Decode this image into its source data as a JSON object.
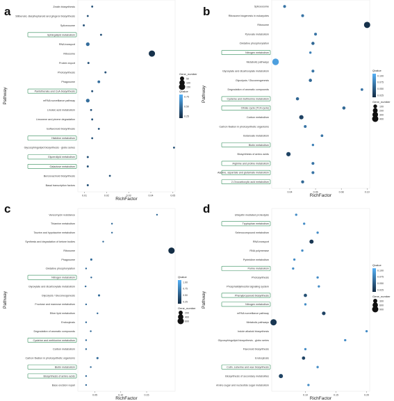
{
  "chart_data": [
    {
      "type": "scatter",
      "panel_label": "a",
      "xlabel": "RichFactor",
      "ylabel": "Pathway",
      "xlim": [
        0.007,
        0.051
      ],
      "xticks": [
        0.01,
        0.02,
        0.03,
        0.04,
        0.05
      ],
      "xtick_labels": [
        "0.01",
        "0.02",
        "0.03",
        "0.04",
        "0.05"
      ],
      "categories": [
        "Zeatin biosynthesis",
        "Stilbenoid, diarylheptanoid and gingerol biosynthesis",
        "Spliceosome",
        "Sphingolipid metabolism",
        "RNA transport",
        "Ribosome",
        "Protein export",
        "Photosynthesis",
        "Phagosome",
        "Pantothenate and CoA biosynthesis",
        "mRNA surveillance pathway",
        "Linoleic acid metabolism",
        "Limonene and pinene degradation",
        "Isoflavonoid biosynthesis",
        "Histidine metabolism",
        "Glycosphingolipid biosynthesis - globo series",
        "Glycerolipid metabolism",
        "Galactose metabolism",
        "Benzoxazinoid biosynthesis",
        "Basal transcription factors"
      ],
      "highlighted": [
        "Sphingolipid metabolism",
        "Pantothenate and CoA biosynthesis",
        "Histidine metabolism",
        "Glycerolipid metabolism",
        "Galactose metabolism"
      ],
      "points": [
        {
          "x": 0.0135,
          "q": 0.3,
          "n": 3
        },
        {
          "x": 0.0115,
          "q": 0.3,
          "n": 3
        },
        {
          "x": 0.0097,
          "q": 0.3,
          "n": 4
        },
        {
          "x": 0.0175,
          "q": 0.3,
          "n": 4
        },
        {
          "x": 0.0115,
          "q": 0.5,
          "n": 35
        },
        {
          "x": 0.0405,
          "q": 0.05,
          "n": 150
        },
        {
          "x": 0.0118,
          "q": 0.3,
          "n": 4
        },
        {
          "x": 0.0195,
          "q": 0.3,
          "n": 4
        },
        {
          "x": 0.0165,
          "q": 0.5,
          "n": 12
        },
        {
          "x": 0.0135,
          "q": 0.3,
          "n": 4
        },
        {
          "x": 0.0115,
          "q": 0.5,
          "n": 35
        },
        {
          "x": 0.013,
          "q": 0.3,
          "n": 3
        },
        {
          "x": 0.0135,
          "q": 0.3,
          "n": 3
        },
        {
          "x": 0.0165,
          "q": 0.3,
          "n": 3
        },
        {
          "x": 0.0135,
          "q": 0.3,
          "n": 3
        },
        {
          "x": 0.0505,
          "q": 0.3,
          "n": 3
        },
        {
          "x": 0.0115,
          "q": 0.3,
          "n": 4
        },
        {
          "x": 0.0115,
          "q": 0.3,
          "n": 4
        },
        {
          "x": 0.0215,
          "q": 0.3,
          "n": 3
        },
        {
          "x": 0.0115,
          "q": 0.3,
          "n": 4
        }
      ],
      "legend": {
        "size_title": "Gene_number",
        "size_values": [
          50,
          100,
          150
        ],
        "color_title": "Qvalue",
        "color_ticks": [
          "0.75",
          "0.50",
          "0.25"
        ],
        "color_range": [
          0,
          1
        ]
      }
    },
    {
      "type": "scatter",
      "panel_label": "b",
      "xlabel": "RichFactor",
      "ylabel": "Pathway",
      "xlim": [
        0.026,
        0.102
      ],
      "xticks": [
        0.04,
        0.06,
        0.08,
        0.1
      ],
      "xtick_labels": [
        "0.04",
        "0.06",
        "0.08",
        "0.10"
      ],
      "categories": [
        "Spliceosome",
        "Ribosome biogenesis in eukaryotes",
        "Ribosome",
        "Pyruvate metabolism",
        "Oxidative phosphorylation",
        "Nitrogen metabolism",
        "Metabolic pathways",
        "Glyoxylate and dicarboxylate metabolism",
        "Glycolysis / Gluconeogenesis",
        "Degradation of aromatic compounds",
        "Cysteine and methionine metabolism",
        "Citrate cycle (TCA cycle)",
        "Carbon metabolism",
        "Carbon fixation in photosynthetic organisms",
        "Butanoate metabolism",
        "Biotin metabolism",
        "Biosynthesis of amino acids",
        "Arginine and proline metabolism",
        "Alanine, aspartate and glutamate metabolism",
        "2-Oxocarboxylic acid metabolism"
      ],
      "highlighted": [
        "Nitrogen metabolism",
        "Cysteine and methionine metabolism",
        "Citrate cycle (TCA cycle)",
        "Biotin metabolism",
        "Arginine and proline metabolism",
        "Alanine, aspartate and glutamate metabolism",
        "2-Oxocarboxylic acid metabolism"
      ],
      "points": [
        {
          "x": 0.036,
          "q": 0.06,
          "n": 40
        },
        {
          "x": 0.05,
          "q": 0.06,
          "n": 40
        },
        {
          "x": 0.1,
          "q": 0.005,
          "n": 400
        },
        {
          "x": 0.06,
          "q": 0.06,
          "n": 40
        },
        {
          "x": 0.058,
          "q": 0.05,
          "n": 60
        },
        {
          "x": 0.056,
          "q": 0.07,
          "n": 20
        },
        {
          "x": 0.029,
          "q": 0.095,
          "n": 450
        },
        {
          "x": 0.058,
          "q": 0.06,
          "n": 40
        },
        {
          "x": 0.056,
          "q": 0.05,
          "n": 60
        },
        {
          "x": 0.096,
          "q": 0.06,
          "n": 30
        },
        {
          "x": 0.046,
          "q": 0.05,
          "n": 60
        },
        {
          "x": 0.082,
          "q": 0.05,
          "n": 60
        },
        {
          "x": 0.049,
          "q": 0.02,
          "n": 150
        },
        {
          "x": 0.052,
          "q": 0.06,
          "n": 40
        },
        {
          "x": 0.065,
          "q": 0.06,
          "n": 30
        },
        {
          "x": 0.058,
          "q": 0.07,
          "n": 20
        },
        {
          "x": 0.039,
          "q": 0.02,
          "n": 150
        },
        {
          "x": 0.058,
          "q": 0.06,
          "n": 40
        },
        {
          "x": 0.058,
          "q": 0.06,
          "n": 40
        },
        {
          "x": 0.05,
          "q": 0.05,
          "n": 50
        }
      ],
      "legend": {
        "size_title": "Gene_number",
        "size_values": [
          100,
          200,
          300,
          400
        ],
        "color_title": "Qvalue",
        "color_ticks": [
          "0.100",
          "0.075",
          "0.050",
          "0.025"
        ],
        "color_range": [
          0,
          0.11
        ]
      }
    },
    {
      "type": "scatter",
      "panel_label": "c",
      "xlabel": "RichFactor",
      "ylabel": "Pathway",
      "xlim": [
        0.017,
        0.205
      ],
      "xticks": [
        0.05,
        0.1,
        0.15
      ],
      "xtick_labels": [
        "0.05",
        "0.10",
        "0.15"
      ],
      "categories": [
        "Vancomycin resistance",
        "Thiamine metabolism",
        "Taurine and hypotaurine metabolism",
        "Synthesis and degradation of ketone bodies",
        "Ribosome",
        "Phagosome",
        "Oxidative phosphorylation",
        "Nitrogen metabolism",
        "Glyoxylate and dicarboxylate metabolism",
        "Glycolysis / Gluconeogenesis",
        "Fructose and mannose metabolism",
        "Ether lipid metabolism",
        "Endocytosis",
        "Degradation of aromatic compounds",
        "Cysteine and methionine metabolism",
        "Carbon metabolism",
        "Carbon fixation in photosynthetic organisms",
        "Biotin metabolism",
        "Biosynthesis of amino acids",
        "Base excision repair"
      ],
      "highlighted": [
        "Nitrogen metabolism",
        "Cysteine and methionine metabolism",
        "Biotin metabolism",
        "Biosynthesis of amino acids"
      ],
      "points": [
        {
          "x": 0.17,
          "q": 0.5,
          "n": 5
        },
        {
          "x": 0.083,
          "q": 0.5,
          "n": 5
        },
        {
          "x": 0.083,
          "q": 0.5,
          "n": 5
        },
        {
          "x": 0.066,
          "q": 0.5,
          "n": 5
        },
        {
          "x": 0.198,
          "q": 0.02,
          "n": 600
        },
        {
          "x": 0.043,
          "q": 0.5,
          "n": 20
        },
        {
          "x": 0.033,
          "q": 0.5,
          "n": 5
        },
        {
          "x": 0.043,
          "q": 0.5,
          "n": 5
        },
        {
          "x": 0.032,
          "q": 0.5,
          "n": 5
        },
        {
          "x": 0.058,
          "q": 0.5,
          "n": 20
        },
        {
          "x": 0.033,
          "q": 0.5,
          "n": 5
        },
        {
          "x": 0.055,
          "q": 0.5,
          "n": 5
        },
        {
          "x": 0.033,
          "q": 0.5,
          "n": 5
        },
        {
          "x": 0.042,
          "q": 0.5,
          "n": 5
        },
        {
          "x": 0.033,
          "q": 0.5,
          "n": 5
        },
        {
          "x": 0.033,
          "q": 0.5,
          "n": 5
        },
        {
          "x": 0.055,
          "q": 0.5,
          "n": 20
        },
        {
          "x": 0.042,
          "q": 0.5,
          "n": 5
        },
        {
          "x": 0.033,
          "q": 0.5,
          "n": 5
        },
        {
          "x": 0.033,
          "q": 0.5,
          "n": 5
        }
      ],
      "legend": {
        "size_title": "Gene_number",
        "size_values": [
          200,
          400,
          600
        ],
        "color_title": "Qvalue",
        "color_ticks": [
          "1.00",
          "0.75",
          "0.50",
          "0.25"
        ],
        "color_range": [
          0,
          1.05
        ]
      }
    },
    {
      "type": "scatter",
      "panel_label": "d",
      "xlabel": "RichFactor",
      "ylabel": "Pathway",
      "xlim": [
        0.045,
        0.205
      ],
      "xticks": [
        0.1,
        0.15,
        0.2
      ],
      "xtick_labels": [
        "0.10",
        "0.15",
        "0.20"
      ],
      "categories": [
        "Ubiquitin mediated proteolysis",
        "Tryptophan metabolism",
        "Selenocompound metabolism",
        "RNA transport",
        "RNA polymerase",
        "Pyrimidine metabolism",
        "Purine metabolism",
        "Photosynthesis",
        "Phosphatidylinositol signaling system",
        "Phenylpropanoid biosynthesis",
        "Nitrogen metabolism",
        "mRNA surveillance pathway",
        "Metabolic pathways",
        "Indole alkaloid biosynthesis",
        "Glycosphingolipid biosynthesis - globo series",
        "Flavonoid biosynthesis",
        "Endocytosis",
        "Cutin, suberine and wax biosynthesis",
        "Biosynthesis of secondary metabolites",
        "Amino sugar and nucleotide sugar metabolism"
      ],
      "highlighted": [
        "Tryptophan metabolism",
        "Purine metabolism",
        "Phenylpropanoid biosynthesis",
        "Nitrogen metabolism",
        "Cutin, suberine and wax biosynthesis"
      ],
      "points": [
        {
          "x": 0.085,
          "q": 0.08,
          "n": 40
        },
        {
          "x": 0.098,
          "q": 0.08,
          "n": 40
        },
        {
          "x": 0.12,
          "q": 0.08,
          "n": 40
        },
        {
          "x": 0.11,
          "q": 0.01,
          "n": 300
        },
        {
          "x": 0.095,
          "q": 0.08,
          "n": 40
        },
        {
          "x": 0.082,
          "q": 0.08,
          "n": 40
        },
        {
          "x": 0.08,
          "q": 0.08,
          "n": 40
        },
        {
          "x": 0.12,
          "q": 0.08,
          "n": 40
        },
        {
          "x": 0.122,
          "q": 0.08,
          "n": 40
        },
        {
          "x": 0.1,
          "q": 0.03,
          "n": 150
        },
        {
          "x": 0.1,
          "q": 0.08,
          "n": 40
        },
        {
          "x": 0.13,
          "q": 0.02,
          "n": 200
        },
        {
          "x": 0.048,
          "q": 0.01,
          "n": 900
        },
        {
          "x": 0.2,
          "q": 0.08,
          "n": 40
        },
        {
          "x": 0.165,
          "q": 0.08,
          "n": 40
        },
        {
          "x": 0.1,
          "q": 0.08,
          "n": 40
        },
        {
          "x": 0.097,
          "q": 0.02,
          "n": 150
        },
        {
          "x": 0.12,
          "q": 0.08,
          "n": 40
        },
        {
          "x": 0.06,
          "q": 0.02,
          "n": 300
        },
        {
          "x": 0.105,
          "q": 0.08,
          "n": 40
        }
      ],
      "legend": {
        "size_title": "Gene_number",
        "size_values": [
          300,
          600,
          900
        ],
        "color_title": "Qvalue",
        "color_ticks": [
          "0.100",
          "0.075",
          "0.050",
          "0.025"
        ],
        "color_range": [
          0,
          0.11
        ]
      }
    }
  ]
}
